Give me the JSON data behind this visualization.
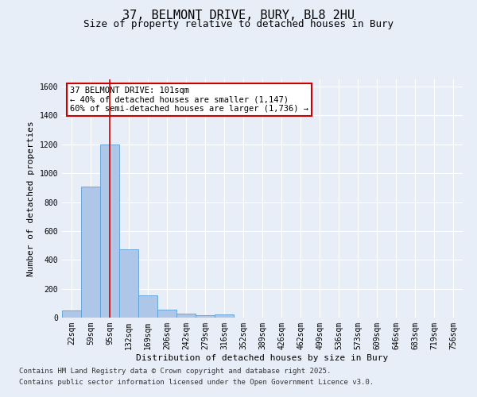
{
  "title_line1": "37, BELMONT DRIVE, BURY, BL8 2HU",
  "title_line2": "Size of property relative to detached houses in Bury",
  "xlabel": "Distribution of detached houses by size in Bury",
  "ylabel": "Number of detached properties",
  "categories": [
    "22sqm",
    "59sqm",
    "95sqm",
    "132sqm",
    "169sqm",
    "206sqm",
    "242sqm",
    "279sqm",
    "316sqm",
    "352sqm",
    "389sqm",
    "426sqm",
    "462sqm",
    "499sqm",
    "536sqm",
    "573sqm",
    "609sqm",
    "646sqm",
    "683sqm",
    "719sqm",
    "756sqm"
  ],
  "values": [
    50,
    910,
    1200,
    475,
    155,
    55,
    30,
    18,
    20,
    0,
    0,
    0,
    0,
    0,
    0,
    0,
    0,
    0,
    0,
    0,
    0
  ],
  "bar_color": "#aec6e8",
  "bar_edge_color": "#5a9fd4",
  "vline_x": 2,
  "vline_color": "#cc0000",
  "annotation_text": "37 BELMONT DRIVE: 101sqm\n← 40% of detached houses are smaller (1,147)\n60% of semi-detached houses are larger (1,736) →",
  "annotation_box_color": "#ffffff",
  "annotation_box_edge": "#cc0000",
  "ylim": [
    0,
    1650
  ],
  "yticks": [
    0,
    200,
    400,
    600,
    800,
    1000,
    1200,
    1400,
    1600
  ],
  "background_color": "#e8eef8",
  "plot_bg_color": "#e8eef8",
  "grid_color": "#ffffff",
  "footer_line1": "Contains HM Land Registry data © Crown copyright and database right 2025.",
  "footer_line2": "Contains public sector information licensed under the Open Government Licence v3.0.",
  "title_fontsize": 11,
  "subtitle_fontsize": 9,
  "axis_label_fontsize": 8,
  "tick_fontsize": 7,
  "annotation_fontsize": 7.5,
  "footer_fontsize": 6.5
}
